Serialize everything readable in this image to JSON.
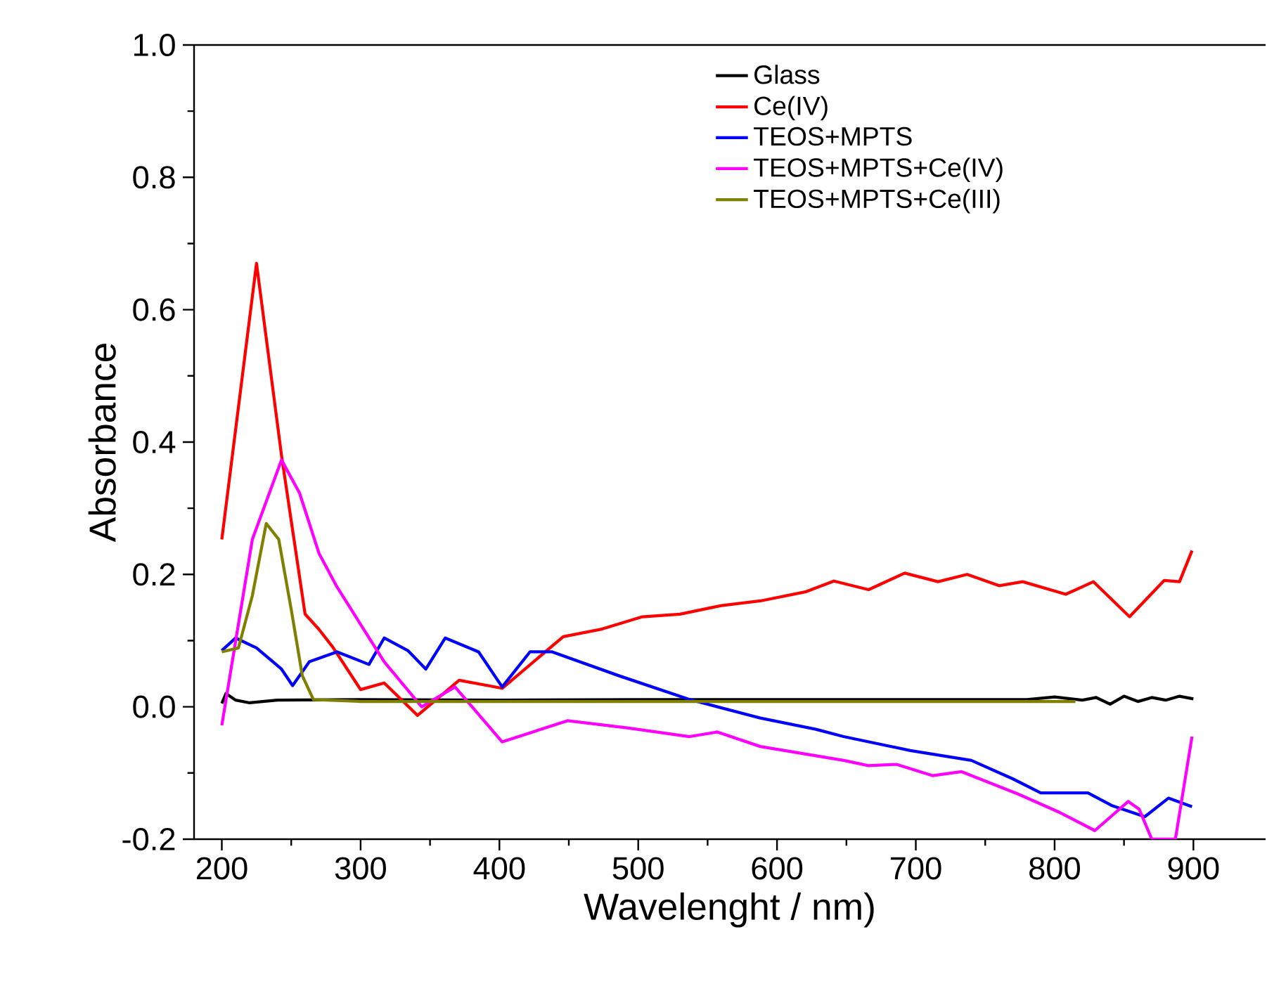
{
  "chart_data": {
    "type": "line",
    "xlabel": "Wavelenght / nm)",
    "ylabel": "Absorbance",
    "xlim": [
      180,
      952
    ],
    "ylim": [
      -0.2,
      1.0
    ],
    "xticks": [
      200,
      300,
      400,
      500,
      600,
      700,
      800,
      900
    ],
    "yticks": [
      {
        "value": -0.2,
        "label": "-0.2"
      },
      {
        "value": 0.0,
        "label": "0.0"
      },
      {
        "value": 0.2,
        "label": "0.2"
      },
      {
        "value": 0.4,
        "label": "0.4"
      },
      {
        "value": 0.6,
        "label": "0.6"
      },
      {
        "value": 0.8,
        "label": "0.8"
      },
      {
        "value": 1.0,
        "label": "1.0"
      }
    ],
    "grid": false,
    "legend": "top right",
    "marker": "none",
    "line_style": "solid",
    "series": [
      {
        "name": "Glass",
        "color": "#000000",
        "x": [
          200,
          203,
          210,
          220,
          240,
          300,
          400,
          500,
          600,
          700,
          780,
          800,
          820,
          830,
          840,
          850,
          860,
          870,
          880,
          890,
          900
        ],
        "values": [
          0.005,
          0.02,
          0.01,
          0.006,
          0.01,
          0.011,
          0.01,
          0.011,
          0.011,
          0.011,
          0.011,
          0.015,
          0.01,
          0.014,
          0.004,
          0.016,
          0.008,
          0.014,
          0.01,
          0.016,
          0.012
        ]
      },
      {
        "name": "Ce(IV)",
        "color": "#ff0000",
        "x": [
          200,
          225,
          243,
          260,
          270,
          280,
          300,
          317,
          341,
          371,
          402,
          446,
          473,
          503,
          530,
          560,
          588,
          621,
          641,
          666,
          692,
          716,
          737,
          760,
          777,
          808,
          828,
          854,
          879,
          890,
          899
        ],
        "values": [
          0.253,
          0.67,
          0.38,
          0.14,
          0.117,
          0.09,
          0.026,
          0.036,
          -0.013,
          0.04,
          0.028,
          0.106,
          0.117,
          0.136,
          0.14,
          0.153,
          0.16,
          0.174,
          0.19,
          0.177,
          0.202,
          0.189,
          0.2,
          0.183,
          0.189,
          0.17,
          0.189,
          0.136,
          0.191,
          0.189,
          0.236
        ]
      },
      {
        "name": "TEOS+MPTS",
        "color": "#0000ff",
        "x": [
          200,
          210,
          225,
          243,
          251,
          263,
          283,
          306,
          317,
          334,
          347,
          361,
          385,
          402,
          422,
          438,
          486,
          537,
          588,
          628,
          648,
          696,
          740,
          770,
          790,
          824,
          841,
          865,
          882,
          899
        ],
        "values": [
          0.085,
          0.104,
          0.089,
          0.057,
          0.032,
          0.068,
          0.083,
          0.064,
          0.104,
          0.085,
          0.057,
          0.104,
          0.083,
          0.03,
          0.083,
          0.083,
          0.047,
          0.011,
          -0.017,
          -0.034,
          -0.045,
          -0.066,
          -0.081,
          -0.109,
          -0.13,
          -0.13,
          -0.149,
          -0.166,
          -0.138,
          -0.151
        ]
      },
      {
        "name": "TEOS+MPTS+Ce(IV)",
        "color": "#ff00ff",
        "x": [
          200,
          222,
          243,
          256,
          270,
          283,
          317,
          344,
          368,
          402,
          449,
          493,
          537,
          557,
          588,
          648,
          666,
          686,
          712,
          733,
          774,
          804,
          829,
          853,
          861,
          870,
          887,
          899
        ],
        "values": [
          -0.028,
          0.253,
          0.373,
          0.323,
          0.232,
          0.181,
          0.068,
          0.0,
          0.03,
          -0.053,
          -0.021,
          -0.032,
          -0.045,
          -0.038,
          -0.06,
          -0.081,
          -0.089,
          -0.087,
          -0.104,
          -0.098,
          -0.132,
          -0.16,
          -0.187,
          -0.143,
          -0.155,
          -0.2,
          -0.2,
          -0.045
        ]
      },
      {
        "name": "TEOS+MPTS+Ce(III)",
        "color": "#808000",
        "x": [
          200,
          212,
          222,
          232,
          241,
          250,
          258,
          266,
          300,
          400,
          500,
          600,
          700,
          815
        ],
        "values": [
          0.083,
          0.089,
          0.168,
          0.277,
          0.253,
          0.147,
          0.047,
          0.011,
          0.008,
          0.008,
          0.008,
          0.008,
          0.008,
          0.008
        ]
      }
    ]
  }
}
